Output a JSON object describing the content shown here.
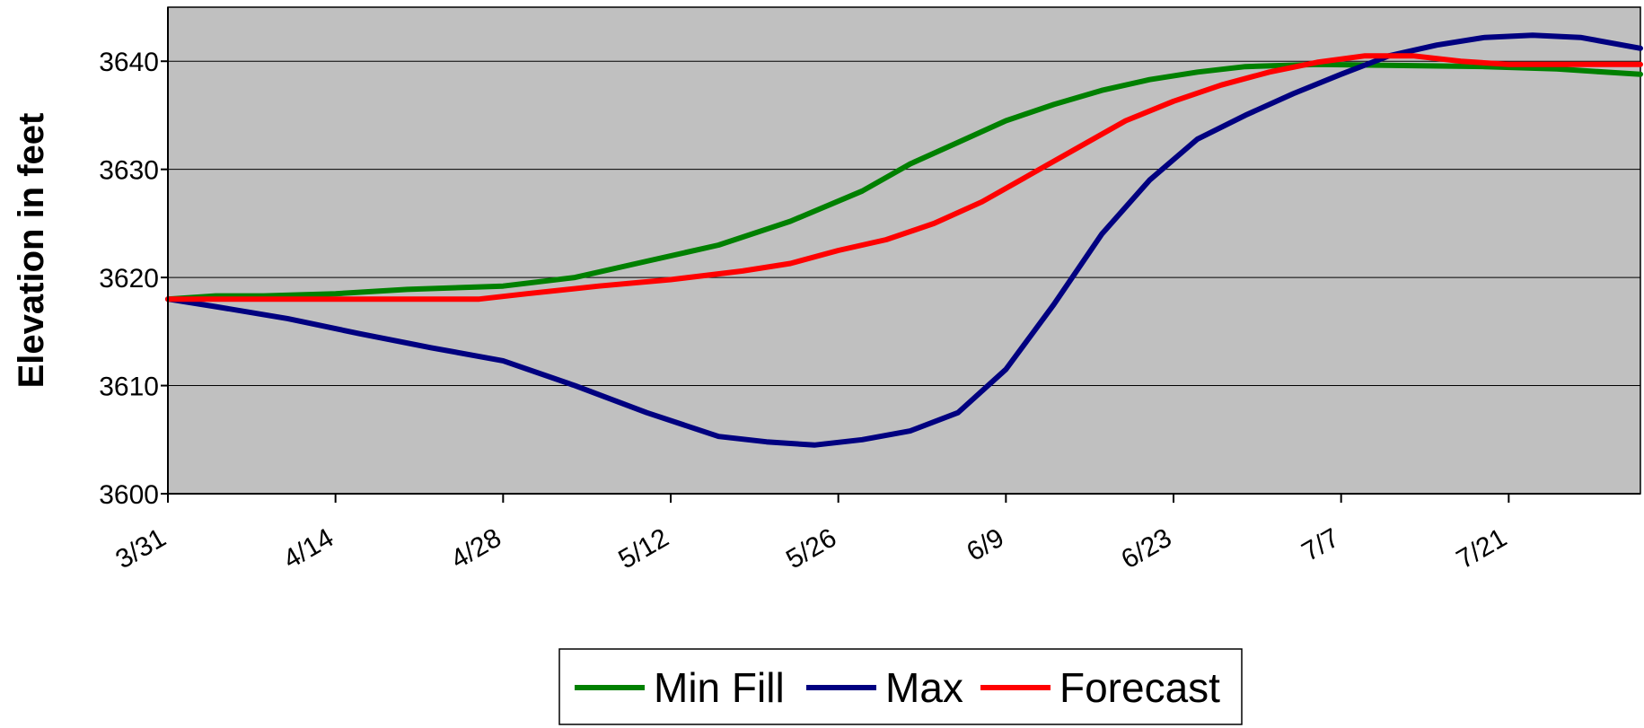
{
  "chart_data": {
    "type": "line",
    "title": "",
    "xlabel": "",
    "ylabel": "Elevation in feet",
    "ylim": [
      3600,
      3645
    ],
    "yticks": [
      3600,
      3610,
      3620,
      3630,
      3640
    ],
    "grid": true,
    "legend_position": "bottom-center",
    "plot_background": "#c0c0c0",
    "x_tick_labels": [
      "3/31",
      "4/14",
      "4/28",
      "5/12",
      "5/26",
      "6/9",
      "6/23",
      "7/7",
      "7/21"
    ],
    "x_tick_days": [
      0,
      14,
      28,
      42,
      56,
      70,
      84,
      98,
      112
    ],
    "x_range_days": [
      0,
      123
    ],
    "series": [
      {
        "name": "Min Fill",
        "color": "#008000",
        "points": [
          [
            0,
            3618
          ],
          [
            4,
            3618.3
          ],
          [
            8,
            3618.3
          ],
          [
            14,
            3618.5
          ],
          [
            20,
            3618.9
          ],
          [
            28,
            3619.2
          ],
          [
            34,
            3620
          ],
          [
            40,
            3621.5
          ],
          [
            46,
            3623
          ],
          [
            52,
            3625.2
          ],
          [
            58,
            3628
          ],
          [
            62,
            3630.5
          ],
          [
            66,
            3632.5
          ],
          [
            70,
            3634.5
          ],
          [
            74,
            3636
          ],
          [
            78,
            3637.3
          ],
          [
            82,
            3638.3
          ],
          [
            86,
            3639
          ],
          [
            90,
            3639.5
          ],
          [
            96,
            3639.7
          ],
          [
            110,
            3639.5
          ],
          [
            116,
            3639.3
          ],
          [
            120,
            3639
          ],
          [
            123,
            3638.8
          ]
        ]
      },
      {
        "name": "Max",
        "color": "#000080",
        "points": [
          [
            0,
            3618
          ],
          [
            4,
            3617.3
          ],
          [
            10,
            3616.2
          ],
          [
            16,
            3614.8
          ],
          [
            22,
            3613.5
          ],
          [
            28,
            3612.3
          ],
          [
            34,
            3610
          ],
          [
            40,
            3607.5
          ],
          [
            46,
            3605.3
          ],
          [
            50,
            3604.8
          ],
          [
            54,
            3604.5
          ],
          [
            58,
            3605
          ],
          [
            62,
            3605.8
          ],
          [
            66,
            3607.5
          ],
          [
            70,
            3611.5
          ],
          [
            74,
            3617.5
          ],
          [
            78,
            3624
          ],
          [
            82,
            3629
          ],
          [
            86,
            3632.8
          ],
          [
            90,
            3635
          ],
          [
            94,
            3637
          ],
          [
            98,
            3638.8
          ],
          [
            102,
            3640.5
          ],
          [
            106,
            3641.5
          ],
          [
            110,
            3642.2
          ],
          [
            114,
            3642.4
          ],
          [
            118,
            3642.2
          ],
          [
            123,
            3641.2
          ]
        ]
      },
      {
        "name": "Forecast",
        "color": "#ff0000",
        "points": [
          [
            0,
            3618
          ],
          [
            10,
            3618
          ],
          [
            20,
            3618
          ],
          [
            26,
            3618
          ],
          [
            30,
            3618.5
          ],
          [
            36,
            3619.2
          ],
          [
            42,
            3619.8
          ],
          [
            48,
            3620.6
          ],
          [
            52,
            3621.3
          ],
          [
            56,
            3622.5
          ],
          [
            60,
            3623.5
          ],
          [
            64,
            3625
          ],
          [
            68,
            3627
          ],
          [
            72,
            3629.5
          ],
          [
            76,
            3632
          ],
          [
            80,
            3634.5
          ],
          [
            84,
            3636.3
          ],
          [
            88,
            3637.8
          ],
          [
            92,
            3639
          ],
          [
            96,
            3639.9
          ],
          [
            100,
            3640.5
          ],
          [
            104,
            3640.5
          ],
          [
            108,
            3640
          ],
          [
            112,
            3639.7
          ],
          [
            123,
            3639.7
          ]
        ]
      }
    ]
  }
}
